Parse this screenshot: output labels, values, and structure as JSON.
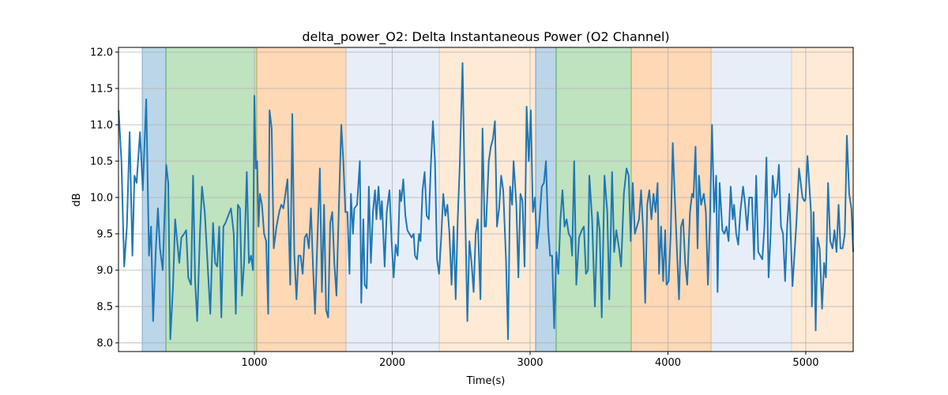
{
  "chart_data": {
    "type": "line",
    "title": "delta_power_O2: Delta Instantaneous Power (O2 Channel)",
    "xlabel": "Time(s)",
    "ylabel": "dB",
    "xlim": [
      14,
      5344
    ],
    "ylim": [
      7.88,
      12.065
    ],
    "grid": true,
    "xticks": [
      1000,
      2000,
      3000,
      4000,
      5000
    ],
    "xtick_labels": [
      "1000",
      "2000",
      "3000",
      "4000",
      "5000"
    ],
    "yticks": [
      8.0,
      8.5,
      9.0,
      9.5,
      10.0,
      10.5,
      11.0,
      11.5,
      12.0
    ],
    "ytick_labels": [
      "8.0",
      "8.5",
      "9.0",
      "9.5",
      "10.0",
      "10.5",
      "11.0",
      "11.5",
      "12.0"
    ],
    "line_color": "#1f77b4",
    "shaded_regions": [
      {
        "start": 186,
        "end": 358,
        "color": "#1f77b4",
        "alpha": 0.3
      },
      {
        "start": 358,
        "end": 1017,
        "color": "#2ca02c",
        "alpha": 0.3
      },
      {
        "start": 1017,
        "end": 1665,
        "color": "#ff7f0e",
        "alpha": 0.3
      },
      {
        "start": 1665,
        "end": 2341,
        "color": "#aec7e8",
        "alpha": 0.3
      },
      {
        "start": 2341,
        "end": 3040,
        "color": "#ffbb78",
        "alpha": 0.3
      },
      {
        "start": 3040,
        "end": 3189,
        "color": "#1f77b4",
        "alpha": 0.3
      },
      {
        "start": 3189,
        "end": 3734,
        "color": "#2ca02c",
        "alpha": 0.3
      },
      {
        "start": 3734,
        "end": 4313,
        "color": "#ff7f0e",
        "alpha": 0.3
      },
      {
        "start": 4313,
        "end": 4897,
        "color": "#aec7e8",
        "alpha": 0.3
      },
      {
        "start": 4897,
        "end": 5344,
        "color": "#ffbb78",
        "alpha": 0.3
      }
    ],
    "x": [
      15,
      35,
      55,
      75,
      95,
      115,
      130,
      145,
      170,
      190,
      215,
      235,
      250,
      265,
      285,
      300,
      315,
      335,
      360,
      375,
      390,
      410,
      425,
      440,
      455,
      470,
      490,
      505,
      520,
      540,
      555,
      570,
      585,
      605,
      620,
      640,
      660,
      680,
      700,
      715,
      730,
      745,
      760,
      775,
      790,
      810,
      830,
      850,
      865,
      880,
      895,
      910,
      925,
      945,
      960,
      975,
      990,
      1000,
      1010,
      1020,
      1030,
      1040,
      1055,
      1070,
      1085,
      1100,
      1110,
      1125,
      1140,
      1160,
      1180,
      1195,
      1210,
      1225,
      1240,
      1260,
      1275,
      1290,
      1305,
      1320,
      1335,
      1350,
      1365,
      1380,
      1395,
      1410,
      1425,
      1440,
      1455,
      1475,
      1490,
      1505,
      1520,
      1535,
      1550,
      1565,
      1580,
      1595,
      1615,
      1630,
      1645,
      1660,
      1675,
      1690,
      1700,
      1715,
      1725,
      1745,
      1765,
      1775,
      1790,
      1800,
      1815,
      1830,
      1845,
      1860,
      1875,
      1885,
      1900,
      1915,
      1925,
      1945,
      1960,
      1980,
      1995,
      2010,
      2025,
      2040,
      2055,
      2065,
      2080,
      2095,
      2110,
      2125,
      2140,
      2155,
      2165,
      2180,
      2195,
      2205,
      2220,
      2235,
      2250,
      2265,
      2280,
      2295,
      2310,
      2325,
      2340,
      2355,
      2370,
      2385,
      2400,
      2415,
      2430,
      2445,
      2460,
      2475,
      2490,
      2510,
      2525,
      2545,
      2560,
      2575,
      2590,
      2605,
      2620,
      2640,
      2655,
      2670,
      2680,
      2700,
      2715,
      2730,
      2745,
      2760,
      2775,
      2790,
      2805,
      2825,
      2840,
      2855,
      2870,
      2880,
      2900,
      2915,
      2930,
      2945,
      2960,
      2975,
      2990,
      3005,
      3020,
      3035,
      3050,
      3065,
      3085,
      3100,
      3115,
      3130,
      3145,
      3160,
      3175,
      3190,
      3205,
      3220,
      3235,
      3250,
      3265,
      3280,
      3295,
      3305,
      3320,
      3335,
      3355,
      3375,
      3390,
      3405,
      3420,
      3430,
      3450,
      3470,
      3490,
      3505,
      3520,
      3540,
      3560,
      3575,
      3595,
      3610,
      3625,
      3645,
      3660,
      3680,
      3700,
      3715,
      3730,
      3745,
      3760,
      3775,
      3790,
      3805,
      3820,
      3835,
      3850,
      3865,
      3880,
      3895,
      3910,
      3925,
      3935,
      3950,
      3965,
      3980,
      3990,
      4005,
      4020,
      4035,
      4050,
      4065,
      4080,
      4095,
      4110,
      4125,
      4140,
      4160,
      4175,
      4185,
      4200,
      4215,
      4225,
      4240,
      4260,
      4275,
      4290,
      4305,
      4320,
      4335,
      4350,
      4360,
      4375,
      4395,
      4410,
      4425,
      4440,
      4455,
      4470,
      4480,
      4495,
      4510,
      4525,
      4545,
      4560,
      4575,
      4590,
      4610,
      4625,
      4640,
      4655,
      4670,
      4685,
      4700,
      4715,
      4730,
      4745,
      4760,
      4775,
      4790,
      4805,
      4820,
      4835,
      4850,
      4865,
      4880,
      4904,
      4932,
      4951,
      4976,
      4989,
      4998,
      5012,
      5038,
      5044,
      5057,
      5072,
      5085,
      5101,
      5118,
      5133,
      5146,
      5162,
      5177,
      5194,
      5208,
      5223,
      5238,
      5252,
      5267,
      5283,
      5298,
      5315,
      5331,
      5344
    ],
    "y": [
      11.2,
      10.5,
      9.05,
      9.6,
      10.9,
      9.2,
      10.3,
      10.2,
      10.9,
      10.1,
      11.35,
      9.2,
      9.6,
      8.3,
      9.3,
      9.85,
      9.3,
      9.0,
      10.45,
      10.2,
      8.05,
      8.8,
      9.7,
      9.4,
      9.1,
      9.45,
      9.5,
      9.55,
      8.9,
      8.8,
      10.3,
      8.85,
      8.3,
      9.5,
      10.15,
      9.8,
      9.1,
      8.4,
      9.65,
      9.1,
      9.05,
      9.6,
      8.35,
      9.6,
      9.65,
      9.75,
      9.85,
      9.5,
      8.4,
      9.9,
      9.85,
      8.65,
      9.1,
      10.35,
      9.1,
      9.2,
      9.0,
      11.4,
      10.4,
      10.5,
      9.6,
      10.05,
      9.9,
      9.5,
      9.4,
      8.4,
      11.2,
      10.95,
      9.3,
      9.6,
      9.8,
      9.9,
      9.85,
      10.05,
      10.25,
      8.8,
      11.15,
      9.2,
      8.6,
      9.2,
      9.2,
      8.95,
      9.45,
      9.5,
      9.3,
      9.85,
      9.05,
      8.4,
      9.3,
      10.4,
      8.7,
      9.9,
      8.45,
      8.35,
      9.65,
      9.8,
      9.1,
      8.65,
      10.0,
      11.0,
      10.5,
      9.8,
      9.8,
      8.95,
      10.05,
      9.5,
      9.85,
      9.9,
      10.5,
      8.55,
      9.7,
      8.8,
      8.75,
      10.15,
      9.1,
      9.8,
      10.1,
      9.7,
      10.15,
      9.7,
      9.95,
      9.05,
      9.8,
      10.1,
      9.4,
      8.9,
      9.35,
      9.2,
      10.1,
      9.95,
      10.25,
      9.75,
      9.55,
      9.5,
      9.45,
      9.5,
      9.2,
      9.15,
      9.5,
      9.4,
      10.1,
      10.35,
      9.75,
      9.7,
      10.45,
      11.05,
      10.5,
      9.15,
      8.95,
      9.45,
      10.05,
      9.75,
      9.9,
      9.5,
      8.8,
      9.6,
      8.6,
      9.7,
      10.45,
      11.85,
      10.2,
      8.3,
      9.4,
      9.1,
      8.7,
      9.5,
      9.7,
      8.6,
      10.95,
      9.6,
      9.6,
      10.5,
      10.7,
      10.8,
      11.05,
      9.6,
      9.85,
      10.3,
      10.1,
      9.15,
      8.05,
      10.15,
      9.9,
      10.5,
      9.9,
      8.9,
      10.05,
      9.95,
      9.05,
      11.25,
      10.5,
      11.2,
      9.8,
      10.0,
      9.3,
      9.6,
      10.15,
      10.2,
      10.5,
      9.6,
      9.2,
      9.2,
      8.2,
      9.25,
      8.95,
      9.7,
      10.1,
      9.6,
      9.7,
      9.5,
      9.45,
      9.2,
      10.5,
      8.8,
      9.45,
      9.55,
      9.6,
      8.95,
      9.0,
      10.3,
      9.7,
      8.5,
      9.8,
      9.55,
      8.35,
      10.3,
      9.8,
      8.6,
      10.35,
      9.25,
      9.55,
      9.3,
      9.05,
      10.05,
      10.4,
      10.3,
      9.4,
      10.2,
      9.5,
      9.6,
      9.7,
      10.1,
      9.55,
      8.55,
      9.9,
      10.1,
      9.7,
      10.05,
      9.8,
      10.2,
      8.95,
      9.6,
      8.85,
      9.55,
      8.8,
      8.85,
      9.5,
      10.75,
      10.0,
      9.3,
      8.6,
      9.6,
      9.7,
      9.1,
      8.8,
      9.8,
      10.05,
      10.0,
      10.7,
      9.3,
      10.3,
      9.9,
      10.05,
      9.8,
      8.8,
      9.7,
      11.0,
      9.8,
      10.3,
      8.7,
      10.2,
      9.55,
      9.5,
      9.6,
      9.4,
      10.15,
      9.7,
      9.9,
      9.5,
      9.35,
      9.8,
      10.15,
      9.9,
      9.55,
      10.0,
      10.0,
      9.15,
      10.3,
      9.25,
      9.2,
      9.15,
      9.6,
      10.55,
      8.9,
      9.5,
      10.3,
      10.0,
      10.05,
      10.45,
      9.6,
      9.5,
      8.85,
      9.6,
      10.05,
      8.78,
      9.65,
      10.4,
      10.0,
      9.95,
      9.97,
      10.57,
      9.8,
      8.5,
      9.8,
      8.17,
      9.45,
      9.3,
      8.47,
      9.1,
      8.9,
      10.2,
      9.4,
      9.3,
      9.55,
      9.25,
      9.9,
      9.3,
      9.3,
      9.5,
      10.85,
      10.05,
      9.85,
      9.25
    ]
  }
}
